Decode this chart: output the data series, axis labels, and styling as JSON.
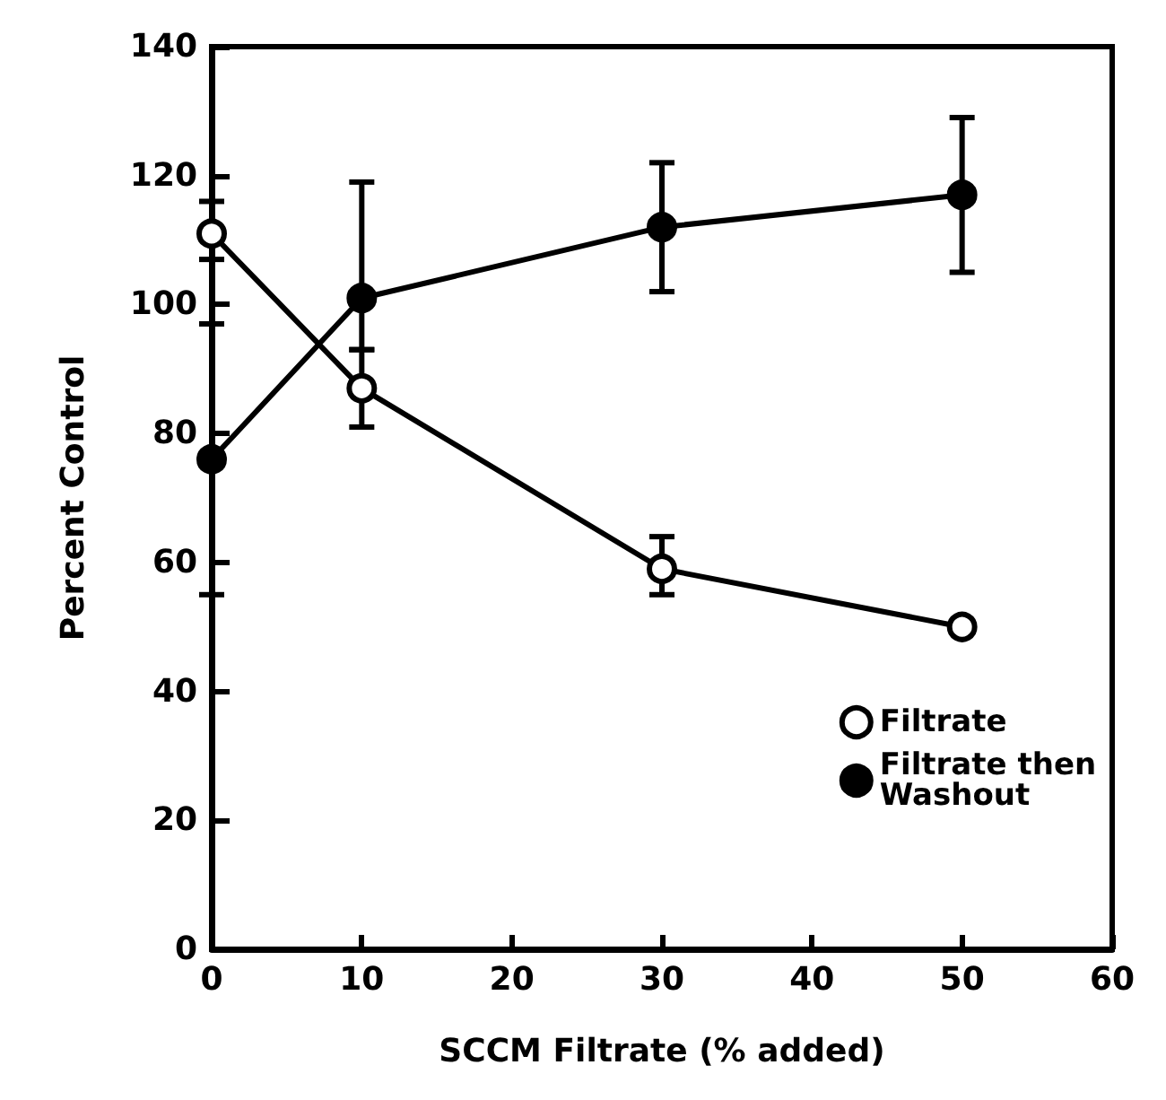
{
  "chart_data": {
    "type": "line",
    "xlabel": "SCCM Filtrate (% added)",
    "ylabel": "Percent Control",
    "x": [
      0,
      10,
      30,
      50
    ],
    "xlim": [
      0,
      60
    ],
    "xticks": [
      0,
      10,
      20,
      30,
      40,
      50,
      60
    ],
    "ylim": [
      0,
      140
    ],
    "yticks": [
      0,
      20,
      40,
      60,
      80,
      100,
      120,
      140
    ],
    "grid": false,
    "legend": "right",
    "line_style": "solid",
    "series": [
      {
        "name": "Filtrate",
        "color": "#000000",
        "marker": "circle",
        "values": [
          111,
          87,
          59,
          50
        ],
        "errors": [
          [
            107,
            116
          ],
          [
            81,
            93
          ],
          [
            55,
            64
          ],
          null
        ]
      },
      {
        "name": "Filtrate then Washout",
        "color": "#000000",
        "marker": "circle",
        "values": [
          76,
          101,
          112,
          117
        ],
        "errors": [
          [
            55,
            97
          ],
          [
            93,
            119
          ],
          [
            102,
            122
          ],
          [
            105,
            129
          ]
        ]
      }
    ]
  }
}
